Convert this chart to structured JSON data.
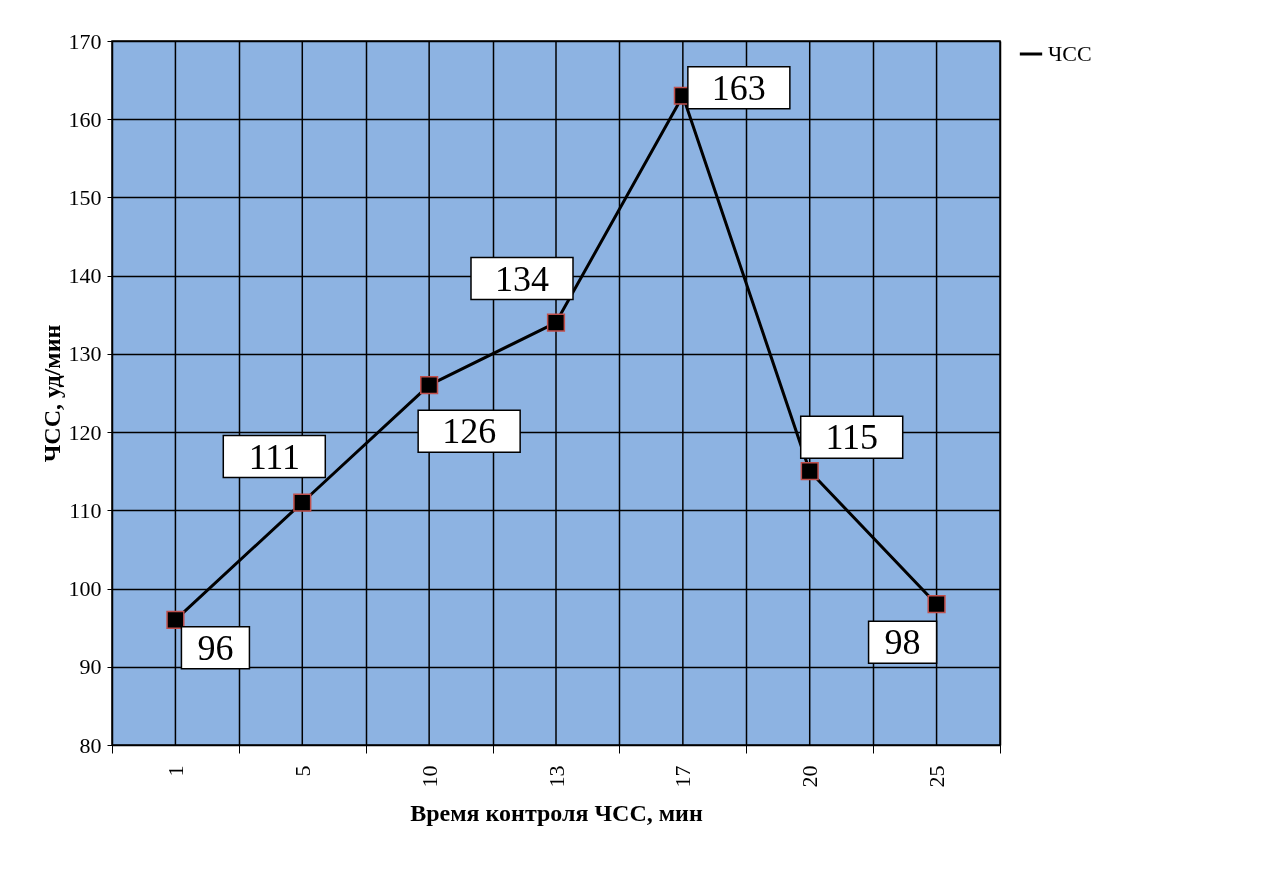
{
  "chart_data": {
    "type": "line",
    "xlabel": "Время контроля ЧСС, мин",
    "ylabel": "ЧСС, уд/мин",
    "categories": [
      "1",
      "5",
      "10",
      "13",
      "17",
      "20",
      "25"
    ],
    "series": [
      {
        "name": "ЧСС",
        "color": "#000000",
        "values": [
          96,
          111,
          126,
          134,
          163,
          115,
          98
        ]
      }
    ],
    "ylim": [
      80,
      170
    ],
    "yticks": [
      80,
      90,
      100,
      110,
      120,
      130,
      140,
      150,
      160,
      170
    ],
    "grid": true,
    "legend": "right",
    "marker": "square",
    "line_style": "solid",
    "data_labels": true
  }
}
